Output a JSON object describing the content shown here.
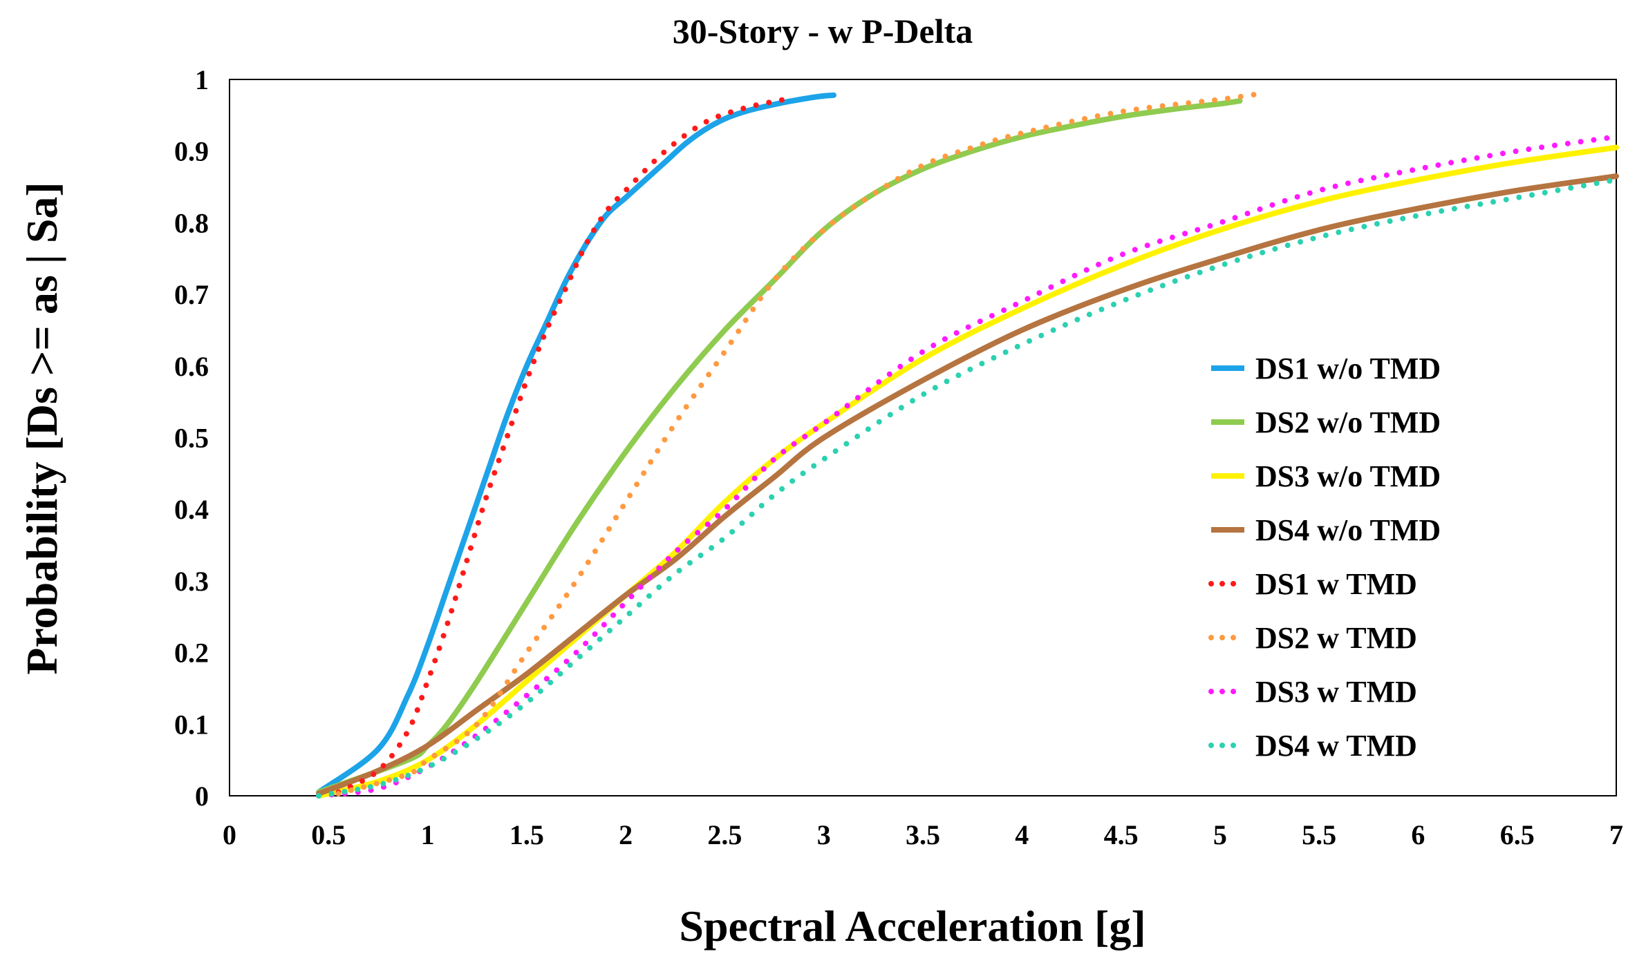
{
  "chart_data": {
    "type": "line",
    "title": "30-Story - w P-Delta",
    "xlabel": "Spectral Acceleration [g]",
    "ylabel": "Probability [Ds >= as | Sa]",
    "xlim": [
      0,
      7
    ],
    "ylim": [
      0,
      1
    ],
    "x_ticks": [
      0,
      0.5,
      1,
      1.5,
      2,
      2.5,
      3,
      3.5,
      4,
      4.5,
      5,
      5.5,
      6,
      6.5,
      7
    ],
    "x_tick_labels": [
      "0",
      "0.5",
      "1",
      "1.5",
      "2",
      "2.5",
      "3",
      "3.5",
      "4",
      "4.5",
      "5",
      "5.5",
      "6",
      "6.5",
      "7"
    ],
    "y_ticks": [
      0,
      0.1,
      0.2,
      0.3,
      0.4,
      0.5,
      0.6,
      0.7,
      0.8,
      0.9,
      1
    ],
    "y_tick_labels": [
      "0",
      "0.1",
      "0.2",
      "0.3",
      "0.4",
      "0.5",
      "0.6",
      "0.7",
      "0.8",
      "0.9",
      "1"
    ],
    "grid": false,
    "legend_position": "right",
    "series": [
      {
        "name": "DS1 w/o TMD",
        "color": "#1CA3E8",
        "style": "solid",
        "x": [
          0.45,
          0.75,
          0.9,
          1.0,
          1.1,
          1.2,
          1.3,
          1.4,
          1.5,
          1.6,
          1.7,
          1.8,
          1.9,
          2.0,
          2.1,
          2.2,
          2.3,
          2.4,
          2.5,
          2.6,
          2.7,
          2.8,
          2.9,
          3.0,
          3.05
        ],
        "y": [
          0.005,
          0.065,
          0.14,
          0.21,
          0.29,
          0.37,
          0.45,
          0.53,
          0.6,
          0.66,
          0.72,
          0.77,
          0.81,
          0.835,
          0.86,
          0.885,
          0.91,
          0.93,
          0.945,
          0.955,
          0.962,
          0.968,
          0.973,
          0.977,
          0.978
        ]
      },
      {
        "name": "DS2 w/o TMD",
        "color": "#8FCB4F",
        "style": "solid",
        "x": [
          0.45,
          0.9,
          1.0,
          1.1,
          1.25,
          1.5,
          1.75,
          2.0,
          2.25,
          2.5,
          2.75,
          3.0,
          3.25,
          3.5,
          3.75,
          4.0,
          4.25,
          4.5,
          4.75,
          5.0,
          5.1
        ],
        "y": [
          0.005,
          0.05,
          0.07,
          0.1,
          0.16,
          0.27,
          0.38,
          0.48,
          0.57,
          0.65,
          0.72,
          0.79,
          0.84,
          0.875,
          0.9,
          0.92,
          0.935,
          0.948,
          0.958,
          0.966,
          0.97
        ]
      },
      {
        "name": "DS3 w/o TMD",
        "color": "#FFF200",
        "style": "solid",
        "x": [
          0.45,
          0.75,
          1.0,
          1.25,
          1.5,
          1.75,
          2.0,
          2.25,
          2.5,
          2.75,
          3.0,
          3.5,
          4.0,
          4.5,
          5.0,
          5.5,
          6.0,
          6.5,
          7.0
        ],
        "y": [
          0.0,
          0.02,
          0.05,
          0.1,
          0.16,
          0.22,
          0.28,
          0.34,
          0.41,
          0.47,
          0.52,
          0.61,
          0.68,
          0.74,
          0.79,
          0.83,
          0.86,
          0.885,
          0.905
        ]
      },
      {
        "name": "DS4 w/o TMD",
        "color": "#B57440",
        "style": "solid",
        "x": [
          0.45,
          0.75,
          1.0,
          1.25,
          1.5,
          1.75,
          2.0,
          2.25,
          2.5,
          2.75,
          3.0,
          3.5,
          4.0,
          4.5,
          5.0,
          5.5,
          6.0,
          6.5,
          7.0
        ],
        "y": [
          0.003,
          0.035,
          0.07,
          0.12,
          0.17,
          0.225,
          0.28,
          0.33,
          0.39,
          0.445,
          0.5,
          0.58,
          0.65,
          0.705,
          0.75,
          0.79,
          0.82,
          0.845,
          0.865
        ]
      },
      {
        "name": "DS1 w TMD",
        "color": "#FF1A1A",
        "style": "dotted",
        "x": [
          0.55,
          0.75,
          0.9,
          1.0,
          1.1,
          1.2,
          1.3,
          1.4,
          1.5,
          1.6,
          1.7,
          1.8,
          1.9,
          2.0,
          2.2,
          2.4,
          2.6,
          2.8
        ],
        "y": [
          0.005,
          0.035,
          0.09,
          0.16,
          0.24,
          0.33,
          0.42,
          0.5,
          0.58,
          0.65,
          0.71,
          0.77,
          0.815,
          0.845,
          0.9,
          0.94,
          0.96,
          0.972
        ]
      },
      {
        "name": "DS2 w TMD",
        "color": "#FF9A40",
        "style": "dotted",
        "x": [
          0.55,
          0.9,
          1.0,
          1.25,
          1.5,
          1.75,
          2.0,
          2.25,
          2.5,
          2.75,
          3.0,
          3.25,
          3.5,
          3.75,
          4.0,
          4.5,
          5.0,
          5.2
        ],
        "y": [
          0.003,
          0.03,
          0.05,
          0.1,
          0.2,
          0.3,
          0.41,
          0.52,
          0.62,
          0.72,
          0.79,
          0.84,
          0.88,
          0.905,
          0.925,
          0.955,
          0.972,
          0.98
        ]
      },
      {
        "name": "DS3 w TMD",
        "color": "#FF1AFF",
        "style": "dotted",
        "x": [
          0.45,
          0.75,
          1.0,
          1.25,
          1.5,
          1.75,
          2.0,
          2.25,
          2.5,
          2.75,
          3.0,
          3.5,
          4.0,
          4.5,
          5.0,
          5.5,
          6.0,
          6.5,
          7.0
        ],
        "y": [
          0.0,
          0.01,
          0.04,
          0.085,
          0.14,
          0.2,
          0.27,
          0.34,
          0.4,
          0.47,
          0.52,
          0.62,
          0.69,
          0.755,
          0.8,
          0.845,
          0.875,
          0.9,
          0.92
        ]
      },
      {
        "name": "DS4 w TMD",
        "color": "#2BD1B0",
        "style": "dotted",
        "x": [
          0.45,
          0.75,
          1.0,
          1.25,
          1.5,
          1.75,
          2.0,
          2.25,
          2.5,
          2.75,
          3.0,
          3.5,
          4.0,
          4.5,
          5.0,
          5.5,
          6.0,
          6.5,
          7.0
        ],
        "y": [
          0.0,
          0.015,
          0.04,
          0.08,
          0.13,
          0.19,
          0.25,
          0.31,
          0.36,
          0.42,
          0.47,
          0.56,
          0.63,
          0.69,
          0.74,
          0.78,
          0.81,
          0.835,
          0.86
        ]
      }
    ]
  }
}
